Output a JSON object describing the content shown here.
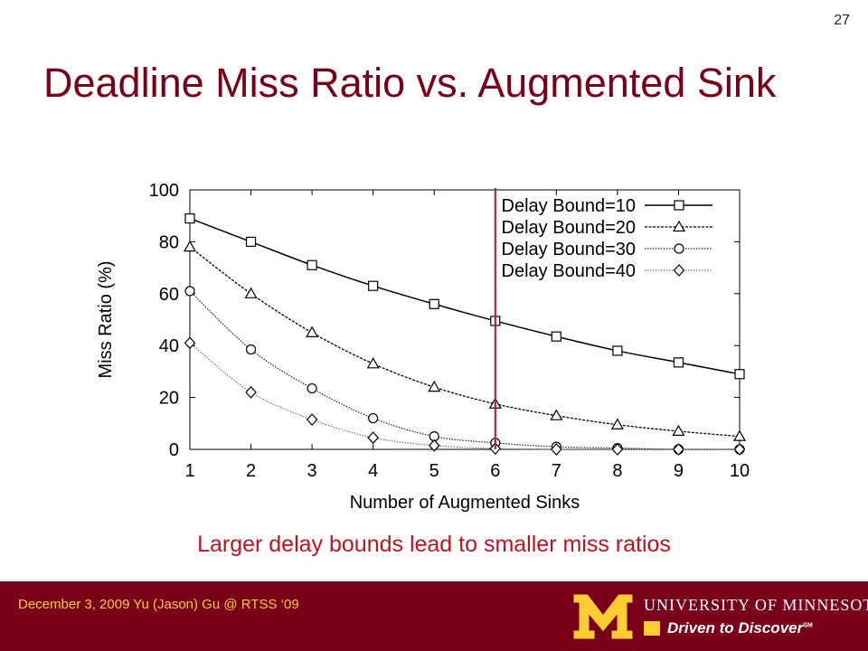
{
  "slide": {
    "number": "27",
    "title": "Deadline Miss Ratio vs. Augmented Sink",
    "caption": "Larger delay bounds lead to smaller miss ratios"
  },
  "footer": {
    "text": "December 3, 2009 Yu (Jason) Gu @ RTSS ‘09",
    "university_name": "UNIVERSITY OF MINNESOTA",
    "slogan": "Driven to Discover",
    "slogan_mark": "SM",
    "background_color": "#7a0019",
    "accent_color": "#ffcc33"
  },
  "chart_data": {
    "type": "line",
    "xlabel": "Number of Augmented Sinks",
    "ylabel": "Miss Ratio (%)",
    "x": [
      1,
      2,
      3,
      4,
      5,
      6,
      7,
      8,
      9,
      10
    ],
    "xticks": [
      "1",
      "2",
      "3",
      "4",
      "5",
      "6",
      "7",
      "8",
      "9",
      "10"
    ],
    "yticks": [
      "0",
      "20",
      "40",
      "60",
      "80",
      "100"
    ],
    "xlim": [
      1,
      10
    ],
    "ylim": [
      0,
      100
    ],
    "grid": false,
    "legend_position": "top-right",
    "series": [
      {
        "name": "Delay Bound=10",
        "marker": "square",
        "line": "solid",
        "values": [
          89,
          80,
          71,
          63,
          56,
          49.5,
          43.5,
          38,
          33.5,
          29
        ]
      },
      {
        "name": "Delay Bound=20",
        "marker": "triangle",
        "line": "dashed",
        "values": [
          78,
          60,
          45,
          33,
          24,
          17.5,
          13,
          9.5,
          7,
          5
        ]
      },
      {
        "name": "Delay Bound=30",
        "marker": "circle",
        "line": "dotted",
        "values": [
          61,
          38.5,
          23.5,
          12,
          5,
          2.5,
          1,
          0.5,
          0,
          0
        ]
      },
      {
        "name": "Delay Bound=40",
        "marker": "diamond",
        "line": "dotted",
        "values": [
          41,
          22,
          11.5,
          4.5,
          1.5,
          0.3,
          0,
          0,
          0,
          0
        ]
      }
    ],
    "annotations": [
      {
        "type": "vertical-line",
        "x": 6,
        "color": "#c0121f"
      }
    ]
  }
}
